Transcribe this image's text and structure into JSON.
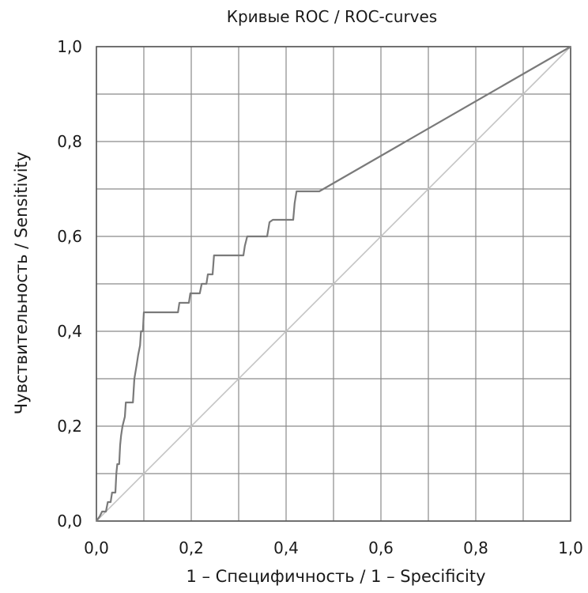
{
  "chart_data": {
    "type": "line",
    "title": "Кривые ROC / ROC-curves",
    "xlabel": "1 – Специфичность / 1 – Specificity",
    "ylabel": "Чувствительность / Sensitivity",
    "xlim": [
      0,
      1
    ],
    "ylim": [
      0,
      1
    ],
    "grid": true,
    "x_ticks": [
      "0,0",
      "0,2",
      "0,4",
      "0,6",
      "0,8",
      "1,0"
    ],
    "y_ticks": [
      "0,0",
      "0,2",
      "0,4",
      "0,6",
      "0,8",
      "1,0"
    ],
    "colors": {
      "roc": "#7a7a7a",
      "reference": "#c4c4c4",
      "grid": "#8a8a8a",
      "frame": "#555555"
    },
    "series": [
      {
        "points": [
          [
            0,
            0
          ],
          [
            0.007,
            0.01
          ],
          [
            0.012,
            0.02
          ],
          [
            0.02,
            0.02
          ],
          [
            0.024,
            0.04
          ],
          [
            0.03,
            0.04
          ],
          [
            0.033,
            0.06
          ],
          [
            0.04,
            0.06
          ],
          [
            0.042,
            0.1
          ],
          [
            0.044,
            0.12
          ],
          [
            0.048,
            0.12
          ],
          [
            0.05,
            0.16
          ],
          [
            0.052,
            0.18
          ],
          [
            0.055,
            0.2
          ],
          [
            0.06,
            0.22
          ],
          [
            0.062,
            0.25
          ],
          [
            0.077,
            0.25
          ],
          [
            0.08,
            0.3
          ],
          [
            0.085,
            0.33
          ],
          [
            0.088,
            0.35
          ],
          [
            0.092,
            0.37
          ],
          [
            0.094,
            0.4
          ],
          [
            0.098,
            0.4
          ],
          [
            0.1,
            0.44
          ],
          [
            0.172,
            0.44
          ],
          [
            0.175,
            0.46
          ],
          [
            0.195,
            0.46
          ],
          [
            0.198,
            0.48
          ],
          [
            0.218,
            0.48
          ],
          [
            0.222,
            0.5
          ],
          [
            0.232,
            0.5
          ],
          [
            0.235,
            0.52
          ],
          [
            0.245,
            0.52
          ],
          [
            0.248,
            0.56
          ],
          [
            0.31,
            0.56
          ],
          [
            0.313,
            0.58
          ],
          [
            0.318,
            0.6
          ],
          [
            0.36,
            0.6
          ],
          [
            0.365,
            0.63
          ],
          [
            0.372,
            0.635
          ],
          [
            0.415,
            0.635
          ],
          [
            0.418,
            0.67
          ],
          [
            0.422,
            0.695
          ],
          [
            0.47,
            0.695
          ],
          [
            1,
            1
          ]
        ]
      },
      {
        "points": [
          [
            0,
            0
          ],
          [
            1,
            1
          ]
        ]
      }
    ]
  }
}
